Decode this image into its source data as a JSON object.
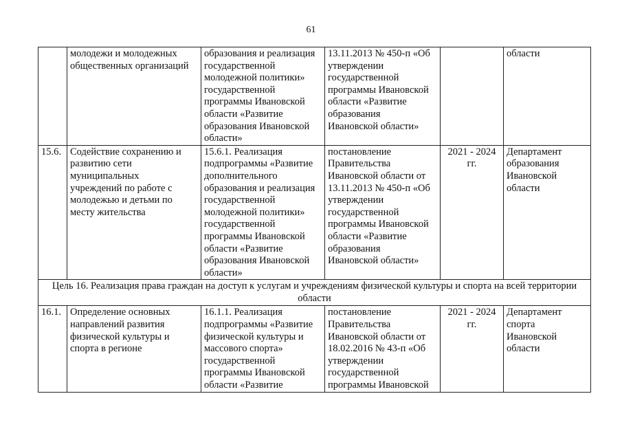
{
  "page_number": "61",
  "rows": [
    {
      "type": "item",
      "num": [],
      "measure": [
        "молодежи и молодежных",
        "общественных организаций"
      ],
      "action": [
        "образования и реализация",
        "государственной",
        "молодежной политики»",
        "государственной",
        "программы Ивановской",
        "области «Развитие",
        "образования Ивановской",
        "области»"
      ],
      "document": [
        "13.11.2013 № 450-п «Об",
        "утверждении",
        "государственной",
        "программы Ивановской",
        "области «Развитие",
        "образования",
        "Ивановской области»"
      ],
      "period": [],
      "responsible": [
        "области"
      ]
    },
    {
      "type": "item",
      "num": [
        "15.6."
      ],
      "measure": [
        "Содействие сохранению и",
        "развитию сети",
        "муниципальных",
        "учреждений по работе с",
        "молодежью и детьми по",
        "месту жительства"
      ],
      "action": [
        "15.6.1. Реализация",
        "подпрограммы «Развитие",
        "дополнительного",
        "образования и реализация",
        "государственной",
        "молодежной политики»",
        "государственной",
        "программы Ивановской",
        "области «Развитие",
        "образования Ивановской",
        "области»"
      ],
      "document": [
        "постановление",
        "Правительства",
        "Ивановской области от",
        "13.11.2013 № 450-п «Об",
        "утверждении",
        "государственной",
        "программы Ивановской",
        "области «Развитие",
        "образования",
        "Ивановской области»"
      ],
      "period": [
        "2021 - 2024",
        "гг."
      ],
      "responsible": [
        "Департамент",
        "образования",
        "Ивановской",
        "области"
      ]
    },
    {
      "type": "goal",
      "text": [
        "Цель 16. Реализация права граждан на доступ к услугам и учреждениям физической культуры и спорта на всей территории",
        "области"
      ]
    },
    {
      "type": "item",
      "num": [
        "16.1."
      ],
      "measure": [
        "Определение основных",
        "направлений развития",
        "физической культуры и",
        "спорта в регионе"
      ],
      "action": [
        "16.1.1. Реализация",
        "подпрограммы «Развитие",
        "физической культуры и",
        "массового спорта»",
        "государственной",
        "программы Ивановской",
        "области «Развитие"
      ],
      "document": [
        "постановление",
        "Правительства",
        "Ивановской области от",
        "18.02.2016 № 43-п «Об",
        "утверждении",
        "государственной",
        "программы Ивановской"
      ],
      "period": [
        "2021 - 2024",
        "гг."
      ],
      "responsible": [
        "Департамент",
        "спорта",
        "Ивановской",
        "области"
      ]
    }
  ]
}
